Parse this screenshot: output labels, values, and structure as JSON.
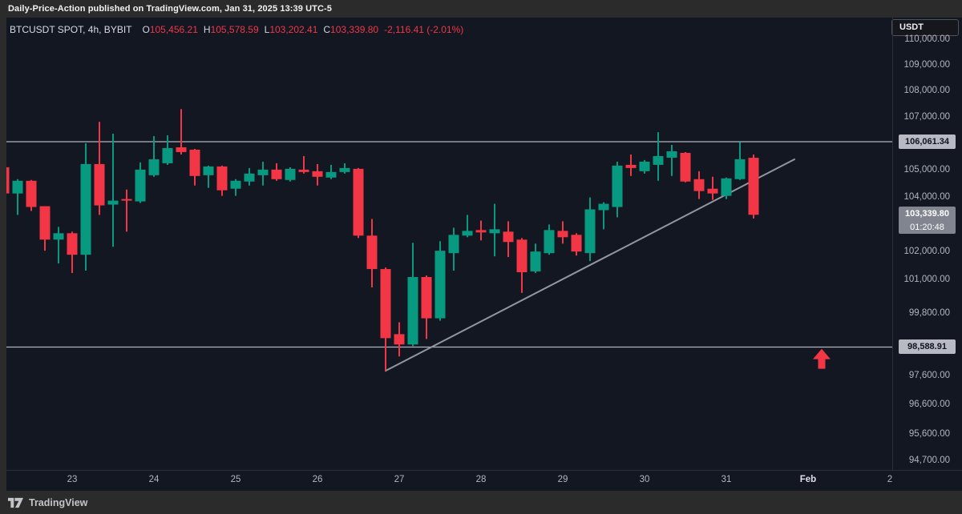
{
  "attribution": {
    "text": "Daily-Price-Action published on TradingView.com, Jan 31, 2025 13:39 UTC-5"
  },
  "currency_button": {
    "label": "USDT"
  },
  "legend": {
    "title": "BTCUSDT SPOT, 4h, BYBIT",
    "o_label": "O",
    "o_value": "105,456.21",
    "h_label": "H",
    "h_value": "105,578.59",
    "l_label": "L",
    "l_value": "103,202.41",
    "c_label": "C",
    "c_value": "103,339.80",
    "change": "-2,116.41 (-2.01%)"
  },
  "watermark": {
    "brand": "TradingView"
  },
  "colors": {
    "up": "#089981",
    "down": "#f23645",
    "background": "#131722",
    "frame": "#2b2b2b",
    "axis_text": "#b2b5be",
    "level_line": "#b2b5be",
    "trendline": "#9196a1",
    "arrow": "#f23645",
    "label_silver": "#b7bac3",
    "label_gray": "#81858f"
  },
  "chart_data": {
    "type": "candlestick",
    "symbol": "BTCUSDT",
    "market": "SPOT",
    "interval": "4h",
    "exchange": "BYBIT",
    "price_axis_ticks": [
      {
        "label": "110,000.00",
        "price": 110000
      },
      {
        "label": "109,000.00",
        "price": 109000
      },
      {
        "label": "108,000.00",
        "price": 108000
      },
      {
        "label": "107,000.00",
        "price": 107000
      },
      {
        "label": "105,000.00",
        "price": 105000
      },
      {
        "label": "104,000.00",
        "price": 104000
      },
      {
        "label": "102,000.00",
        "price": 102000
      },
      {
        "label": "101,000.00",
        "price": 101000
      },
      {
        "label": "99,800.00",
        "price": 99800
      },
      {
        "label": "97,600.00",
        "price": 97600
      },
      {
        "label": "96,600.00",
        "price": 96600
      },
      {
        "label": "95,600.00",
        "price": 95600
      },
      {
        "label": "94,700.00",
        "price": 94700
      }
    ],
    "time_axis_ticks": [
      {
        "label": "23",
        "index": 5
      },
      {
        "label": "24",
        "index": 11
      },
      {
        "label": "25",
        "index": 17
      },
      {
        "label": "26",
        "index": 23
      },
      {
        "label": "27",
        "index": 29
      },
      {
        "label": "28",
        "index": 35
      },
      {
        "label": "29",
        "index": 41
      },
      {
        "label": "30",
        "index": 47
      },
      {
        "label": "31",
        "index": 53
      },
      {
        "label": "Feb",
        "index": 59,
        "emphasis": true
      },
      {
        "label": "2",
        "index": 65
      }
    ],
    "level_lines": [
      {
        "price": 106061.34,
        "label": "106,061.34"
      },
      {
        "price": 98588.91,
        "label": "98,588.91"
      }
    ],
    "last_price_label": {
      "label": "103,339.80",
      "countdown": "01:20:48",
      "price": 103339.8
    },
    "trendline": {
      "from": {
        "index": 28,
        "price": 97760
      },
      "to": {
        "index": 58,
        "price": 105400
      }
    },
    "arrow_annotation": {
      "index": 60,
      "price": 98530,
      "direction": "up"
    },
    "candles": [
      [
        105102,
        105102,
        104126,
        104126
      ],
      [
        104126,
        104657,
        103334,
        104598
      ],
      [
        104598,
        104628,
        103480,
        103627
      ],
      [
        103656,
        103656,
        102026,
        102431
      ],
      [
        102431,
        102895,
        101565,
        102663
      ],
      [
        102663,
        102721,
        101220,
        101881
      ],
      [
        101881,
        106000,
        101306,
        105222
      ],
      [
        105222,
        106815,
        103334,
        103685
      ],
      [
        103715,
        106362,
        102170,
        103861
      ],
      [
        103920,
        104273,
        102721,
        103861
      ],
      [
        103832,
        105281,
        103773,
        105013
      ],
      [
        104805,
        106272,
        104746,
        105401
      ],
      [
        105251,
        106302,
        105192,
        105821
      ],
      [
        105851,
        107300,
        105581,
        105671
      ],
      [
        105761,
        105791,
        104421,
        104776
      ],
      [
        104805,
        105162,
        104332,
        105132
      ],
      [
        105132,
        105162,
        104038,
        104244
      ],
      [
        104303,
        104657,
        104038,
        104598
      ],
      [
        104569,
        105073,
        104421,
        104865
      ],
      [
        104805,
        105311,
        104421,
        105013
      ],
      [
        105013,
        105251,
        104598,
        104657
      ],
      [
        104628,
        105102,
        104569,
        105043
      ],
      [
        105013,
        105521,
        104865,
        104924
      ],
      [
        104954,
        105222,
        104421,
        104746
      ],
      [
        104717,
        105192,
        104657,
        104924
      ],
      [
        104924,
        105251,
        104865,
        105073
      ],
      [
        105043,
        105073,
        102489,
        102576
      ],
      [
        102576,
        103187,
        100706,
        101364
      ],
      [
        101364,
        101421,
        97761,
        98902
      ],
      [
        99042,
        99463,
        98260,
        98679
      ],
      [
        98679,
        102315,
        98623,
        101077
      ],
      [
        101077,
        101134,
        98874,
        99603
      ],
      [
        99603,
        102373,
        99519,
        102026
      ],
      [
        101939,
        102866,
        101306,
        102605
      ],
      [
        102576,
        103334,
        102518,
        102750
      ],
      [
        102779,
        103129,
        102402,
        102692
      ],
      [
        102663,
        103744,
        101824,
        102808
      ],
      [
        102721,
        103100,
        101795,
        102344
      ],
      [
        102431,
        102489,
        100507,
        101249
      ],
      [
        101278,
        102286,
        101220,
        101997
      ],
      [
        101939,
        102983,
        101881,
        102779
      ],
      [
        102750,
        103100,
        102286,
        102518
      ],
      [
        102605,
        102663,
        101852,
        101997
      ],
      [
        101939,
        103979,
        101651,
        103539
      ],
      [
        103510,
        103803,
        102808,
        103744
      ],
      [
        103627,
        105311,
        103246,
        105162
      ],
      [
        105192,
        105581,
        104776,
        105073
      ],
      [
        104954,
        105371,
        104865,
        105311
      ],
      [
        105192,
        106422,
        104598,
        105521
      ],
      [
        105461,
        105941,
        104776,
        105701
      ],
      [
        105641,
        105671,
        104539,
        104569
      ],
      [
        104657,
        104954,
        103920,
        104215
      ],
      [
        104303,
        104746,
        103891,
        104126
      ],
      [
        104038,
        104717,
        103920,
        104687
      ],
      [
        104657,
        106050,
        104628,
        105401
      ],
      [
        105456.21,
        105578.59,
        103202.41,
        103339.8
      ]
    ]
  }
}
